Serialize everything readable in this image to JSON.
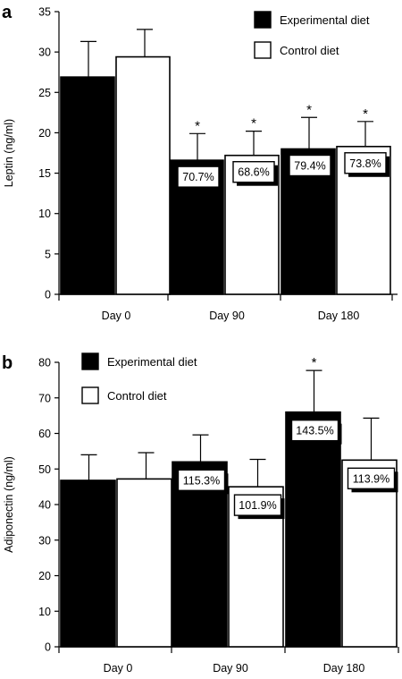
{
  "chart_data": [
    {
      "type": "bar",
      "panel_label": "a",
      "ylabel": "Leptin (ng/ml)",
      "xlabel": "",
      "ylim": [
        0,
        35
      ],
      "yticks": [
        0,
        5,
        10,
        15,
        20,
        25,
        30,
        35
      ],
      "categories": [
        "Day 0",
        "Day 90",
        "Day 180"
      ],
      "series": [
        {
          "name": "Experimental diet",
          "color": "#000000",
          "values": [
            26.9,
            16.6,
            18.0
          ],
          "errors": [
            4.4,
            3.3,
            3.9
          ],
          "labels": [
            "",
            "70.7%",
            "79.4%"
          ],
          "significant": [
            false,
            true,
            true
          ]
        },
        {
          "name": "Control diet",
          "color": "#ffffff",
          "values": [
            29.4,
            17.2,
            18.3
          ],
          "errors": [
            3.4,
            3.0,
            3.1
          ],
          "labels": [
            "",
            "68.6%",
            "73.8%"
          ],
          "significant": [
            false,
            true,
            true
          ]
        }
      ],
      "legend_position": "top-right",
      "grid": false
    },
    {
      "type": "bar",
      "panel_label": "b",
      "ylabel": "Adiponectin (ng/ml)",
      "xlabel": "",
      "ylim": [
        0,
        80
      ],
      "yticks": [
        0,
        10,
        20,
        30,
        40,
        50,
        60,
        70,
        80
      ],
      "categories": [
        "Day 0",
        "Day 90",
        "Day 180"
      ],
      "series": [
        {
          "name": "Experimental diet",
          "color": "#000000",
          "values": [
            46.8,
            52.0,
            66.0
          ],
          "errors": [
            7.2,
            7.6,
            11.7
          ],
          "labels": [
            "",
            "115.3%",
            "143.5%"
          ],
          "significant": [
            false,
            false,
            true
          ]
        },
        {
          "name": "Control diet",
          "color": "#ffffff",
          "values": [
            47.2,
            45.0,
            52.5
          ],
          "errors": [
            7.4,
            7.7,
            11.8
          ],
          "labels": [
            "",
            "101.9%",
            "113.9%"
          ],
          "significant": [
            false,
            false,
            false
          ]
        }
      ],
      "legend_position": "top-left",
      "grid": false
    }
  ],
  "significance_marker": "*"
}
